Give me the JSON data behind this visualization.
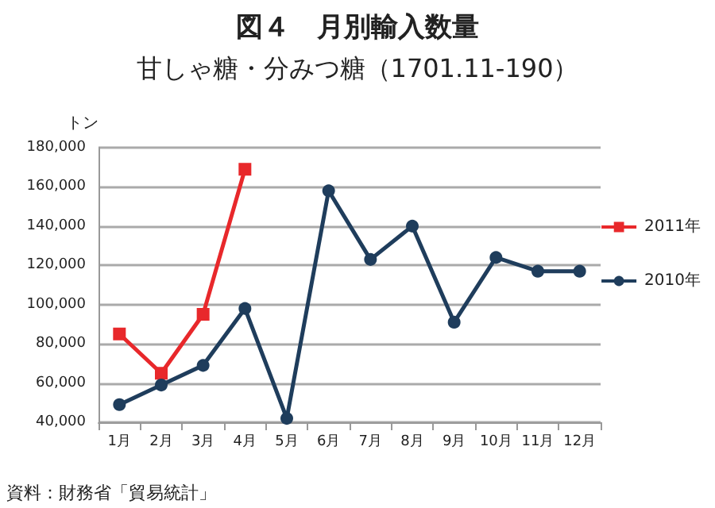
{
  "chart_data": {
    "type": "line",
    "title": "図４　月別輸入数量",
    "subtitle": "甘しゃ糖・分みつ糖（1701.11-190）",
    "ylabel": "トン",
    "categories": [
      "1月",
      "2月",
      "3月",
      "4月",
      "5月",
      "6月",
      "7月",
      "8月",
      "9月",
      "10月",
      "11月",
      "12月"
    ],
    "series": [
      {
        "name": "2011年",
        "color": "#e8282b",
        "marker": "square",
        "values": [
          85000,
          65000,
          95000,
          169000,
          null,
          null,
          null,
          null,
          null,
          null,
          null,
          null
        ]
      },
      {
        "name": "2010年",
        "color": "#1f3d5c",
        "marker": "circle",
        "values": [
          49000,
          59000,
          69000,
          98000,
          42000,
          158000,
          123000,
          140000,
          91000,
          124000,
          117000,
          117000
        ]
      }
    ],
    "ylim": [
      40000,
      180000
    ],
    "yticks": [
      {
        "value": 40000,
        "label": "40,000"
      },
      {
        "value": 60000,
        "label": "60,000"
      },
      {
        "value": 80000,
        "label": "80,000"
      },
      {
        "value": 100000,
        "label": "100,000"
      },
      {
        "value": 120000,
        "label": "120,000"
      },
      {
        "value": 140000,
        "label": "140,000"
      },
      {
        "value": 160000,
        "label": "160,000"
      },
      {
        "value": 180000,
        "label": "180,000"
      }
    ],
    "grid": "y",
    "legend": "right",
    "annotations": [
      "資料：財務省「貿易統計」"
    ]
  }
}
